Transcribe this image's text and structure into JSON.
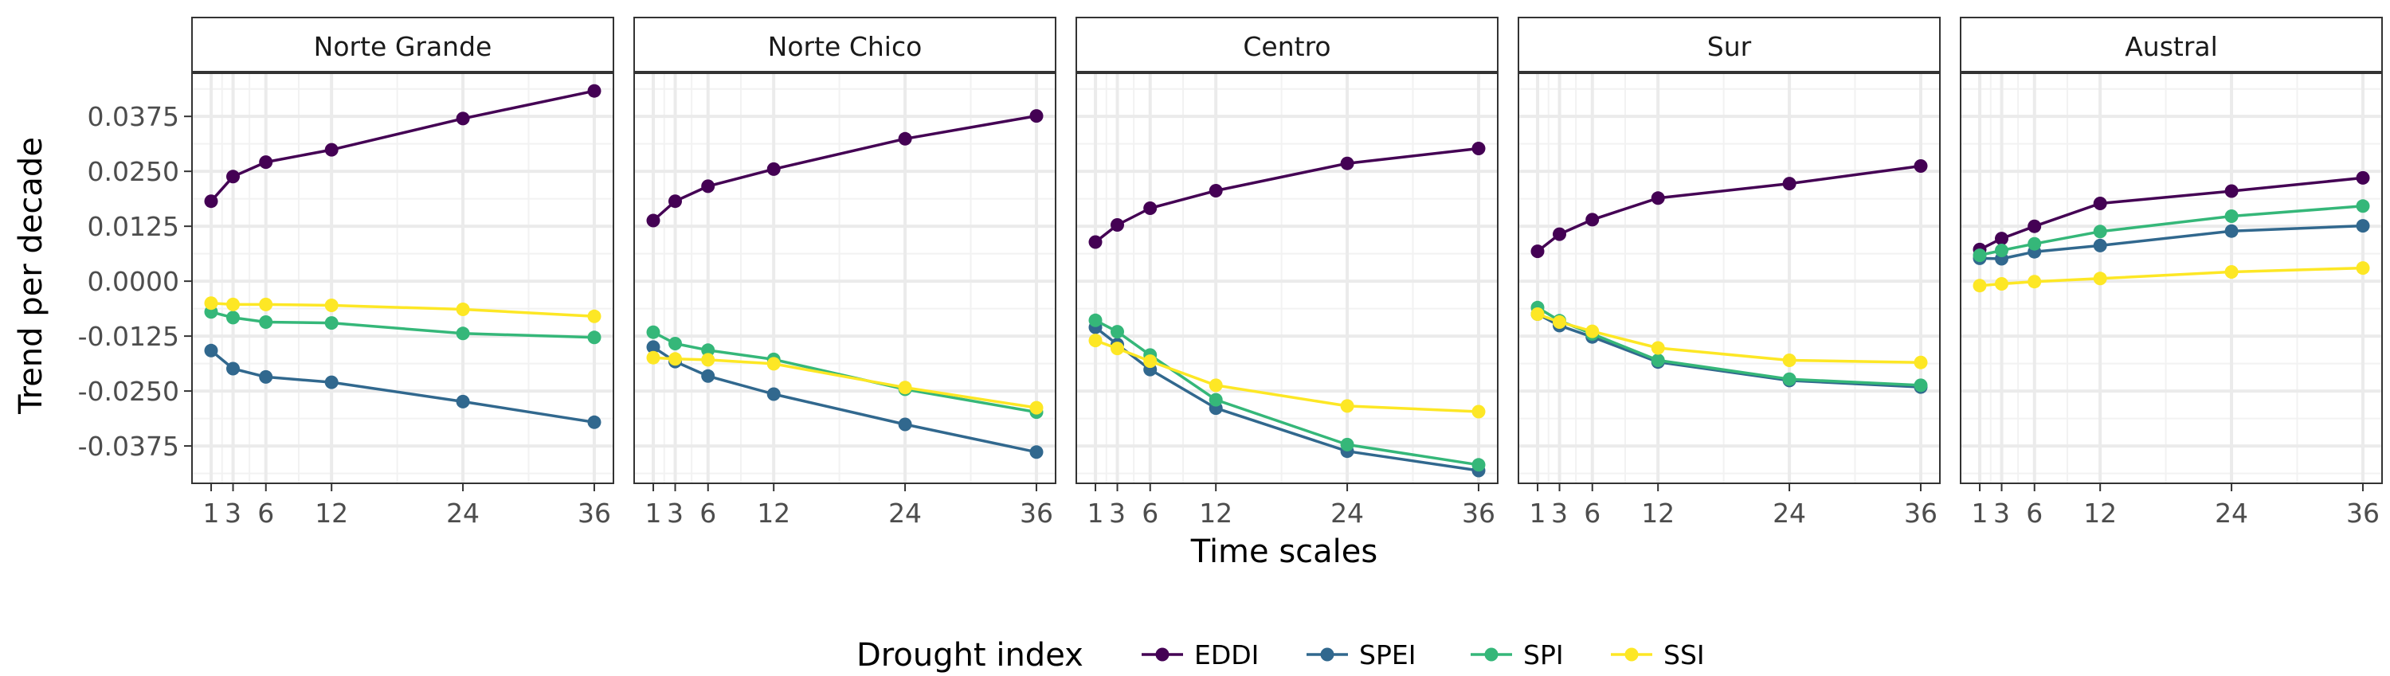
{
  "chart_data": {
    "type": "line",
    "xlabel": "Time scales",
    "ylabel": "Trend per decade",
    "x": [
      1,
      3,
      6,
      12,
      24,
      36
    ],
    "x_ticks": [
      "1",
      "3",
      "6",
      "12",
      "24",
      "36"
    ],
    "ylim": [
      -0.046,
      0.0475
    ],
    "y_ticks": [
      -0.0375,
      -0.025,
      -0.0125,
      0.0,
      0.0125,
      0.025,
      0.0375
    ],
    "y_tick_labels": [
      "-0.0375",
      "-0.0250",
      "-0.0125",
      "0.0000",
      "0.0125",
      "0.0250",
      "0.0375"
    ],
    "grid": true,
    "legend": {
      "title": "Drought index",
      "placement": "bottom",
      "entries": [
        "EDDI",
        "SPEI",
        "SPI",
        "SSI"
      ]
    },
    "colors": {
      "EDDI": "#440154",
      "SPEI": "#31688e",
      "SPI": "#35b779",
      "SSI": "#fde725"
    },
    "panels": [
      {
        "name": "Norte Grande",
        "series": [
          {
            "name": "EDDI",
            "values": [
              0.0182,
              0.0238,
              0.0271,
              0.0299,
              0.037,
              0.0433
            ]
          },
          {
            "name": "SPEI",
            "values": [
              -0.0158,
              -0.0199,
              -0.0218,
              -0.023,
              -0.0274,
              -0.0321
            ]
          },
          {
            "name": "SPI",
            "values": [
              -0.007,
              -0.0083,
              -0.0093,
              -0.0095,
              -0.0119,
              -0.0128
            ]
          },
          {
            "name": "SSI",
            "values": [
              -0.005,
              -0.0053,
              -0.0053,
              -0.0055,
              -0.0064,
              -0.008
            ]
          }
        ]
      },
      {
        "name": "Norte Chico",
        "series": [
          {
            "name": "EDDI",
            "values": [
              0.0138,
              0.0182,
              0.0216,
              0.0255,
              0.0324,
              0.0376
            ]
          },
          {
            "name": "SPEI",
            "values": [
              -0.015,
              -0.0183,
              -0.0216,
              -0.0257,
              -0.0326,
              -0.0389
            ]
          },
          {
            "name": "SPI",
            "values": [
              -0.0116,
              -0.0142,
              -0.0157,
              -0.0178,
              -0.0246,
              -0.0298
            ]
          },
          {
            "name": "SSI",
            "values": [
              -0.0174,
              -0.0177,
              -0.0179,
              -0.0188,
              -0.0242,
              -0.0288
            ]
          }
        ]
      },
      {
        "name": "Centro",
        "series": [
          {
            "name": "EDDI",
            "values": [
              0.0089,
              0.0128,
              0.0166,
              0.0206,
              0.0268,
              0.0302
            ]
          },
          {
            "name": "SPEI",
            "values": [
              -0.0105,
              -0.0144,
              -0.0201,
              -0.0289,
              -0.0387,
              -0.0431
            ]
          },
          {
            "name": "SPI",
            "values": [
              -0.0089,
              -0.0115,
              -0.0168,
              -0.027,
              -0.0372,
              -0.0418
            ]
          },
          {
            "name": "SSI",
            "values": [
              -0.0135,
              -0.0153,
              -0.0182,
              -0.0237,
              -0.0284,
              -0.0297
            ]
          }
        ]
      },
      {
        "name": "Sur",
        "series": [
          {
            "name": "EDDI",
            "values": [
              0.0068,
              0.0107,
              0.014,
              0.0189,
              0.0222,
              0.0262
            ]
          },
          {
            "name": "SPEI",
            "values": [
              -0.0075,
              -0.0101,
              -0.0127,
              -0.0184,
              -0.0226,
              -0.0241
            ]
          },
          {
            "name": "SPI",
            "values": [
              -0.006,
              -0.009,
              -0.012,
              -0.018,
              -0.0223,
              -0.0237
            ]
          },
          {
            "name": "SSI",
            "values": [
              -0.0075,
              -0.0093,
              -0.0114,
              -0.0152,
              -0.018,
              -0.0185
            ]
          }
        ]
      },
      {
        "name": "Austral",
        "series": [
          {
            "name": "EDDI",
            "values": [
              0.0072,
              0.0097,
              0.0125,
              0.0177,
              0.0205,
              0.0235
            ]
          },
          {
            "name": "SPEI",
            "values": [
              0.0052,
              0.0051,
              0.0067,
              0.0081,
              0.0114,
              0.0126
            ]
          },
          {
            "name": "SPI",
            "values": [
              0.0059,
              0.007,
              0.0085,
              0.0113,
              0.0148,
              0.0171
            ]
          },
          {
            "name": "SSI",
            "values": [
              -0.001,
              -0.0006,
              -0.0001,
              0.0006,
              0.0021,
              0.003
            ]
          }
        ]
      }
    ]
  }
}
